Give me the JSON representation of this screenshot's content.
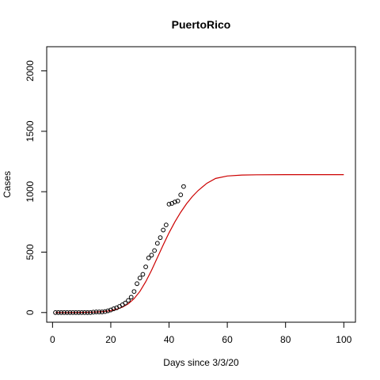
{
  "chart_data": {
    "type": "scatter",
    "title": "PuertoRico",
    "xlabel": "Days since 3/3/20",
    "ylabel": "Cases",
    "xlim": [
      -2,
      104
    ],
    "ylim": [
      -80,
      2200
    ],
    "xticks": [
      0,
      20,
      40,
      60,
      80,
      100
    ],
    "yticks": [
      0,
      500,
      1000,
      1500,
      2000
    ],
    "grid": false,
    "legend": "none",
    "colors": {
      "points": "#000000",
      "fit": "#cc0000",
      "axes": "#000000",
      "background": "#ffffff"
    },
    "series": [
      {
        "kind": "points",
        "x": [
          1,
          2,
          3,
          4,
          5,
          6,
          7,
          8,
          9,
          10,
          11,
          12,
          13,
          14,
          15,
          16,
          17,
          18,
          19,
          20,
          21,
          22,
          23,
          24,
          25,
          26,
          27,
          28,
          29,
          30,
          31,
          32,
          33,
          34,
          35,
          36,
          37,
          38,
          39,
          40,
          41,
          42,
          43,
          44,
          45
        ],
        "y": [
          0,
          0,
          0,
          0,
          0,
          0,
          0,
          0,
          0,
          0,
          0,
          0,
          0,
          3,
          5,
          5,
          5,
          8,
          14,
          21,
          31,
          39,
          51,
          64,
          79,
          100,
          127,
          174,
          239,
          286,
          316,
          378,
          452,
          475,
          513,
          573,
          620,
          683,
          725,
          897,
          903,
          915,
          923,
          974,
          1043
        ]
      },
      {
        "kind": "line",
        "x": [
          1,
          5,
          10,
          14,
          17,
          20,
          22,
          24,
          26,
          28,
          30,
          32,
          34,
          36,
          38,
          40,
          42,
          44,
          46,
          48,
          50,
          53,
          56,
          60,
          65,
          70,
          80,
          90,
          100
        ],
        "y": [
          0,
          0,
          1,
          3,
          7,
          16,
          28,
          45,
          72,
          115,
          175,
          255,
          350,
          455,
          560,
          660,
          750,
          830,
          900,
          960,
          1010,
          1070,
          1110,
          1130,
          1138,
          1140,
          1141,
          1141,
          1141
        ]
      }
    ]
  }
}
